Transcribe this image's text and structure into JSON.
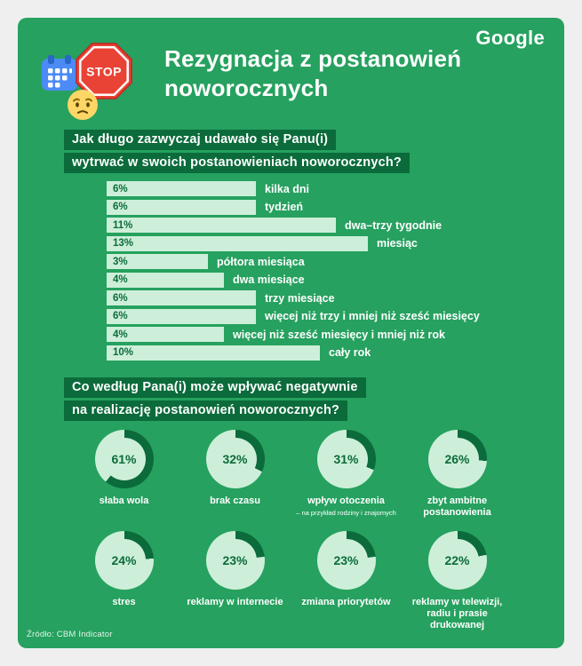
{
  "page": {
    "brand": "Google",
    "title_line1": "Rezygnacja z postanowień",
    "title_line2": "noworocznych",
    "source": "Źródło: CBM Indicator"
  },
  "icons": {
    "calendar": "calendar-icon",
    "stop_text": "STOP",
    "worried_face": "worried-face-icon"
  },
  "colors": {
    "background": "#EFEFEF",
    "card_green": "#26A15F",
    "dark_green": "#0B6B3B",
    "mint": "#CDEFD9",
    "calendar_blue": "#4C8BF5",
    "calendar_blue_dark": "#2A66C8",
    "stop_red": "#E94335",
    "stop_red_dark": "#C5221F",
    "emoji_yellow": "#FDD666",
    "emoji_feature": "#5C4302"
  },
  "chart_data": [
    {
      "type": "bar",
      "question_line1": "Jak długo zazwyczaj udawało się Panu(i)",
      "question_line2": "wytrwać w swoich postanowieniach noworocznych?",
      "categories": [
        "kilka dni",
        "tydzień",
        "dwa–trzy tygodnie",
        "miesiąc",
        "półtora miesiąca",
        "dwa miesiące",
        "trzy miesiące",
        "więcej niż trzy i mniej niż sześć miesięcy",
        "więcej niż sześć miesięcy i mniej niż rok",
        "cały rok"
      ],
      "values": [
        6,
        6,
        11,
        13,
        3,
        4,
        6,
        6,
        4,
        10
      ],
      "unit": "%",
      "bar_color": "#CDEFD9",
      "value_label_color": "#0B6B3B"
    },
    {
      "type": "pie",
      "question_line1": "Co według Pana(i) może wpływać negatywnie",
      "question_line2": "na realizację postanowień noworocznych?",
      "items": [
        {
          "value": 61,
          "label": "słaba wola"
        },
        {
          "value": 32,
          "label": "brak czasu"
        },
        {
          "value": 31,
          "label": "wpływ otoczenia",
          "sublabel": "– na przykład rodziny i znajomych"
        },
        {
          "value": 26,
          "label": "zbyt ambitne postanowienia"
        },
        {
          "value": 24,
          "label": "stres"
        },
        {
          "value": 23,
          "label": "reklamy w internecie"
        },
        {
          "value": 23,
          "label": "zmiana priorytetów"
        },
        {
          "value": 22,
          "label": "reklamy w telewizji, radiu i prasie drukowanej"
        }
      ],
      "unit": "%",
      "arc_color": "#0B6B3B",
      "ring_color": "#CDEFD9"
    }
  ]
}
